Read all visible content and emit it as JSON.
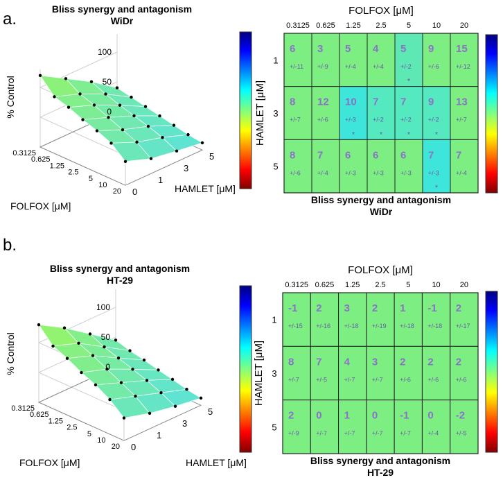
{
  "panels": [
    {
      "letter": "a.",
      "surface_title_line1": "Bliss synergy and antagonism",
      "surface_title_line2": "WiDr",
      "heatmap_title_line1": "Bliss synergy and antagonism",
      "heatmap_title_line2": "WiDr"
    },
    {
      "letter": "b.",
      "surface_title_line1": "Bliss synergy and antagonism",
      "surface_title_line2": "HT-29",
      "heatmap_title_line1": "Bliss synergy and antagonism",
      "heatmap_title_line2": "HT-29"
    }
  ],
  "chart_data": [
    {
      "type": "surface",
      "panel": "a",
      "title": "Bliss synergy and antagonism",
      "subtitle": "WiDr",
      "xlabel": "FOLFOX [μM]",
      "ylabel": "HAMLET [μM]",
      "zlabel": "% Control",
      "x_ticks": [
        "0.3125",
        "0.625",
        "1.25",
        "2.5",
        "5",
        "10",
        "20"
      ],
      "y_ticks": [
        "0",
        "1",
        "3",
        "5"
      ],
      "z_ticks": [
        "0",
        "50",
        "100"
      ],
      "zlim": [
        0,
        130
      ],
      "colorbar": "jet",
      "surface_color": "#7fe8a6",
      "z": [
        [
          120,
          95,
          88,
          78,
          70,
          60,
          40
        ],
        [
          95,
          80,
          72,
          62,
          52,
          42,
          25
        ],
        [
          70,
          60,
          52,
          45,
          38,
          30,
          18
        ],
        [
          40,
          35,
          30,
          25,
          20,
          15,
          12
        ]
      ]
    },
    {
      "type": "heatmap",
      "panel": "a",
      "title": "Bliss synergy and antagonism",
      "subtitle": "WiDr",
      "xlabel": "FOLFOX [μM]",
      "ylabel": "HAMLET [μM]",
      "x_ticks": [
        "0.3125",
        "0.625",
        "1.25",
        "2.5",
        "5",
        "10",
        "20"
      ],
      "y_ticks": [
        "1",
        "3",
        "5"
      ],
      "colorbar": "jet",
      "values": [
        [
          6,
          3,
          5,
          4,
          5,
          9,
          15
        ],
        [
          8,
          12,
          10,
          7,
          7,
          9,
          13
        ],
        [
          8,
          7,
          6,
          6,
          6,
          7,
          7
        ]
      ],
      "errors": [
        [
          "+/-11",
          "+/-9",
          "+/-4",
          "+/-4",
          "+/-2",
          "+/-6",
          "+/-12"
        ],
        [
          "+/-7",
          "+/-6",
          "+/-3",
          "+/-2",
          "+/-2",
          "+/-2",
          "+/-7"
        ],
        [
          "+/-6",
          "+/-4",
          "+/-3",
          "+/-3",
          "+/-3",
          "+/-3",
          "+/-4"
        ]
      ],
      "significance": [
        [
          "",
          "",
          "",
          "",
          "*",
          "",
          ""
        ],
        [
          "",
          "",
          "*",
          "*",
          "*",
          "*",
          ""
        ],
        [
          "",
          "",
          "",
          "",
          "",
          "*",
          ""
        ]
      ],
      "cell_colors": [
        [
          "#7dee82",
          "#7dee82",
          "#7dee82",
          "#7dee82",
          "#5ee8b4",
          "#7dee82",
          "#7dee82"
        ],
        [
          "#7dee82",
          "#7dee82",
          "#3ee6d9",
          "#55e9c0",
          "#55e9c0",
          "#55e9c0",
          "#7dee82"
        ],
        [
          "#7dee82",
          "#7dee82",
          "#7dee82",
          "#7dee82",
          "#7dee82",
          "#3ee6d9",
          "#7dee82"
        ]
      ]
    },
    {
      "type": "surface",
      "panel": "b",
      "title": "Bliss synergy and antagonism",
      "subtitle": "HT-29",
      "xlabel": "FOLFOX [μM]",
      "ylabel": "HAMLET [μM]",
      "zlabel": "% Control",
      "x_ticks": [
        "0.3125",
        "0.625",
        "1.25",
        "2.5",
        "5",
        "10",
        "20"
      ],
      "y_ticks": [
        "0",
        "1",
        "3",
        "5"
      ],
      "z_ticks": [
        "0",
        "50",
        "100"
      ],
      "zlim": [
        0,
        130
      ],
      "colorbar": "jet",
      "surface_color": "#8ee88a",
      "z": [
        [
          130,
          105,
          95,
          82,
          72,
          58,
          38
        ],
        [
          105,
          90,
          80,
          68,
          56,
          44,
          26
        ],
        [
          75,
          64,
          56,
          48,
          40,
          30,
          18
        ],
        [
          45,
          38,
          33,
          27,
          22,
          16,
          12
        ]
      ]
    },
    {
      "type": "heatmap",
      "panel": "b",
      "title": "Bliss synergy and antagonism",
      "subtitle": "HT-29",
      "xlabel": "FOLFOX [μM]",
      "ylabel": "HAMLET [μM]",
      "x_ticks": [
        "0.3125",
        "0.625",
        "1.25",
        "2.5",
        "5",
        "10",
        "20"
      ],
      "y_ticks": [
        "1",
        "3",
        "5"
      ],
      "colorbar": "jet",
      "values": [
        [
          -1,
          2,
          3,
          2,
          1,
          -1,
          2
        ],
        [
          8,
          7,
          4,
          3,
          2,
          2,
          2
        ],
        [
          2,
          0,
          1,
          0,
          -1,
          0,
          -2
        ]
      ],
      "errors": [
        [
          "+/-15",
          "+/-16",
          "+/-18",
          "+/-19",
          "+/-18",
          "+/-18",
          "+/-17"
        ],
        [
          "+/-7",
          "+/-5",
          "+/-7",
          "+/-7",
          "+/-6",
          "+/-6",
          "+/-6"
        ],
        [
          "+/-9",
          "+/-7",
          "+/-7",
          "+/-7",
          "+/-7",
          "+/-4",
          "+/-5"
        ]
      ],
      "significance": [
        [
          "",
          "",
          "",
          "",
          "",
          "",
          ""
        ],
        [
          "",
          "",
          "",
          "",
          "",
          "",
          ""
        ],
        [
          "",
          "",
          "",
          "",
          "",
          "",
          ""
        ]
      ],
      "cell_colors": [
        [
          "#7dee82",
          "#7dee82",
          "#7dee82",
          "#7dee82",
          "#7dee82",
          "#7dee82",
          "#7dee82"
        ],
        [
          "#7dee82",
          "#7dee82",
          "#7dee82",
          "#7dee82",
          "#7dee82",
          "#7dee82",
          "#7dee82"
        ],
        [
          "#7dee82",
          "#7dee82",
          "#7dee82",
          "#7dee82",
          "#7dee82",
          "#7dee82",
          "#7dee82"
        ]
      ]
    }
  ]
}
